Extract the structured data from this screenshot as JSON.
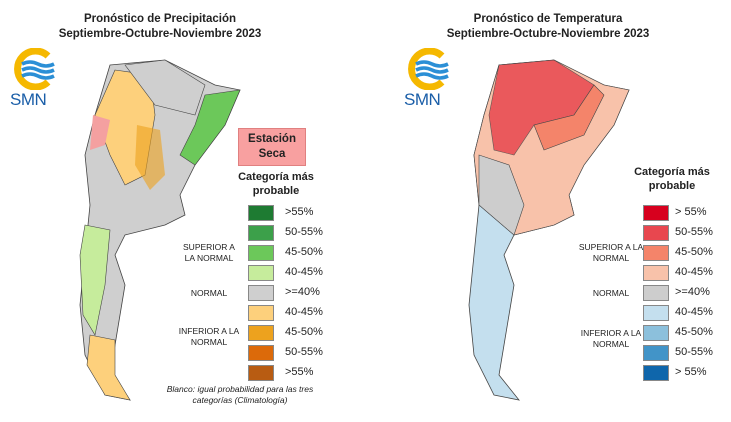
{
  "precipitation": {
    "title": "Pronóstico de Precipitación",
    "subtitle": "Septiembre-Octubre-Noviembre 2023",
    "logo_text": "SMN",
    "dry_season_label": "Estación Seca",
    "legend_title": "Categoría más probable",
    "groups": {
      "above": "SUPERIOR A LA NORMAL",
      "normal": "NORMAL",
      "below": "INFERIOR A LA NORMAL"
    },
    "legend": [
      {
        "label": ">55%",
        "color": "#1e7b32"
      },
      {
        "label": "50-55%",
        "color": "#3ca04a"
      },
      {
        "label": "45-50%",
        "color": "#6cc85a"
      },
      {
        "label": "40-45%",
        "color": "#c6ec9c"
      },
      {
        "label": ">=40%",
        "color": "#cfcfcf"
      },
      {
        "label": "40-45%",
        "color": "#fdd07c"
      },
      {
        "label": "45-50%",
        "color": "#eda21e"
      },
      {
        "label": "50-55%",
        "color": "#dc6a0a"
      },
      {
        "label": ">55%",
        "color": "#b85c12"
      }
    ],
    "note": "Blanco: igual probabilidad para las tres categorías (Climatología)"
  },
  "temperature": {
    "title": "Pronóstico de Temperatura",
    "subtitle": "Septiembre-Octubre-Noviembre 2023",
    "logo_text": "SMN",
    "legend_title": "Categoría más probable",
    "groups": {
      "above": "SUPERIOR A LA NORMAL",
      "normal": "NORMAL",
      "below": "INFERIOR A LA NORMAL"
    },
    "legend": [
      {
        "label": "> 55%",
        "color": "#d7001e"
      },
      {
        "label": "50-55%",
        "color": "#e8474f"
      },
      {
        "label": "45-50%",
        "color": "#f4846a"
      },
      {
        "label": "40-45%",
        "color": "#f8c2aa"
      },
      {
        "label": ">=40%",
        "color": "#cdcdcd"
      },
      {
        "label": "40-45%",
        "color": "#c4dfee"
      },
      {
        "label": "45-50%",
        "color": "#8cc0dc"
      },
      {
        "label": "50-55%",
        "color": "#4294c8"
      },
      {
        "label": "> 55%",
        "color": "#0f66ab"
      }
    ]
  }
}
